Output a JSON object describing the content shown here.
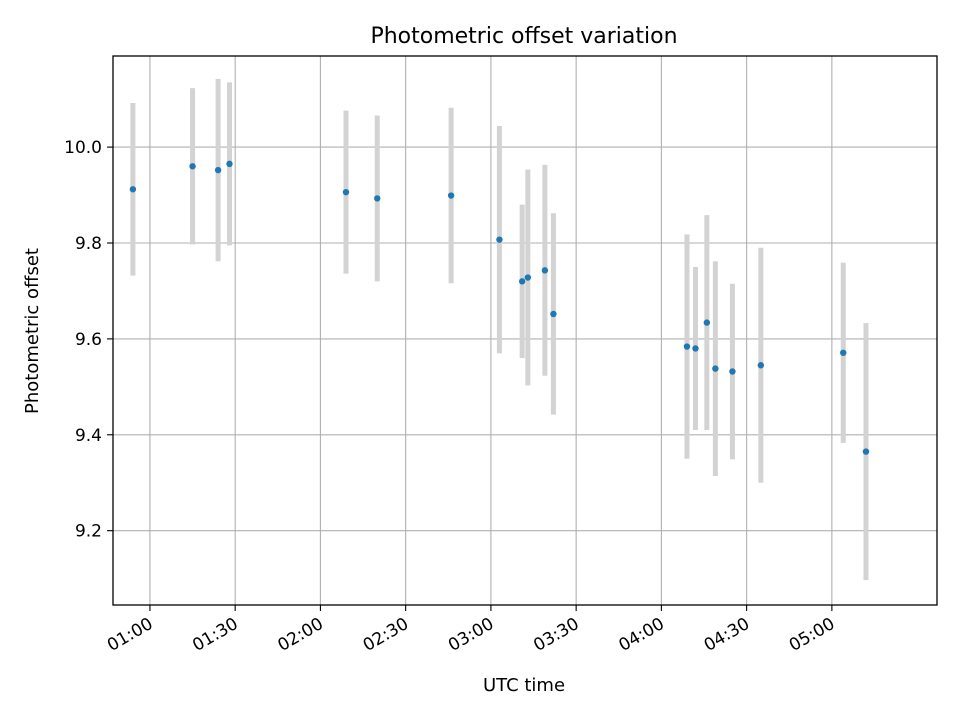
{
  "chart_data": {
    "type": "scatter",
    "title": "Photometric offset variation",
    "xlabel": "UTC time",
    "ylabel": "Photometric offset",
    "x_format": "HH:MM",
    "xlim": [
      "00:47",
      "05:37"
    ],
    "ylim": [
      9.045,
      10.19
    ],
    "x_ticks": [
      "01:00",
      "01:30",
      "02:00",
      "02:30",
      "03:00",
      "03:30",
      "04:00",
      "04:30",
      "05:00"
    ],
    "y_ticks": [
      9.2,
      9.4,
      9.6,
      9.8,
      10.0
    ],
    "y_tick_labels": [
      "9.2",
      "9.4",
      "9.6",
      "9.8",
      "10.0"
    ],
    "grid": true,
    "marker_color": "#1f77b4",
    "errorbar_color": "#d3d3d3",
    "series": [
      {
        "points": [
          {
            "x": "00:54",
            "y": 9.912,
            "err": 0.18
          },
          {
            "x": "01:15",
            "y": 9.96,
            "err": 0.163
          },
          {
            "x": "01:24",
            "y": 9.952,
            "err": 0.19
          },
          {
            "x": "01:28",
            "y": 9.965,
            "err": 0.17
          },
          {
            "x": "02:09",
            "y": 9.906,
            "err": 0.17
          },
          {
            "x": "02:20",
            "y": 9.893,
            "err": 0.173
          },
          {
            "x": "02:46",
            "y": 9.899,
            "err": 0.183
          },
          {
            "x": "03:03",
            "y": 9.807,
            "err": 0.237
          },
          {
            "x": "03:11",
            "y": 9.72,
            "err": 0.16
          },
          {
            "x": "03:13",
            "y": 9.728,
            "err": 0.225
          },
          {
            "x": "03:19",
            "y": 9.743,
            "err": 0.22
          },
          {
            "x": "03:22",
            "y": 9.652,
            "err": 0.21
          },
          {
            "x": "04:09",
            "y": 9.584,
            "err": 0.234
          },
          {
            "x": "04:12",
            "y": 9.58,
            "err": 0.17
          },
          {
            "x": "04:16",
            "y": 9.634,
            "err": 0.224
          },
          {
            "x": "04:19",
            "y": 9.538,
            "err": 0.224
          },
          {
            "x": "04:25",
            "y": 9.532,
            "err": 0.183
          },
          {
            "x": "04:35",
            "y": 9.545,
            "err": 0.245
          },
          {
            "x": "05:04",
            "y": 9.571,
            "err": 0.188
          },
          {
            "x": "05:12",
            "y": 9.365,
            "err": 0.268
          }
        ]
      }
    ]
  }
}
